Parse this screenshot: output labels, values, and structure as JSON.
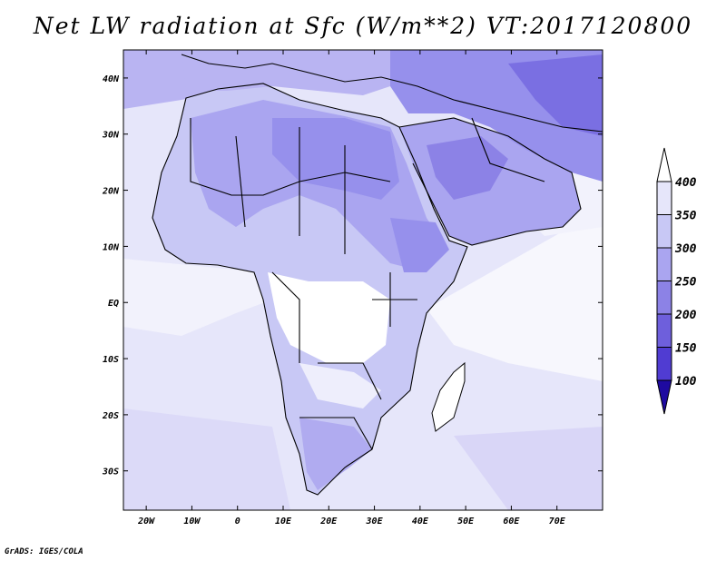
{
  "title": "Net LW radiation at Sfc (W/m**2) VT:2017120800",
  "credit": "GrADS: IGES/COLA",
  "map": {
    "lon_range": [
      -25,
      80
    ],
    "lat_range": [
      -37,
      45
    ],
    "x_ticks": [
      "20W",
      "10W",
      "0",
      "10E",
      "20E",
      "30E",
      "40E",
      "50E",
      "60E",
      "70E"
    ],
    "x_tick_lons": [
      -20,
      -10,
      0,
      10,
      20,
      30,
      40,
      50,
      60,
      70
    ],
    "y_ticks": [
      "40N",
      "30N",
      "20N",
      "10N",
      "EQ",
      "10S",
      "20S",
      "30S"
    ],
    "y_tick_lats": [
      40,
      30,
      20,
      10,
      0,
      -10,
      -20,
      -30
    ]
  },
  "colorbar": {
    "labels": [
      "400",
      "350",
      "300",
      "250",
      "200",
      "150",
      "100"
    ],
    "colors": [
      "#ffffff",
      "#e6e6fa",
      "#c8c8f5",
      "#aaa5f0",
      "#8c82e6",
      "#6e5fdc",
      "#503cd2",
      "#3219be",
      "#1e0aa0"
    ],
    "extends": "both"
  },
  "colors": {
    "ocean": "#e6e6fa",
    "ocean_light": "#f2f2fc",
    "land_low": "#ffffff",
    "land_mid": "#c8c8f5",
    "land_high": "#aaa5f0",
    "land_max": "#8c82e6",
    "coast": "#000000"
  }
}
